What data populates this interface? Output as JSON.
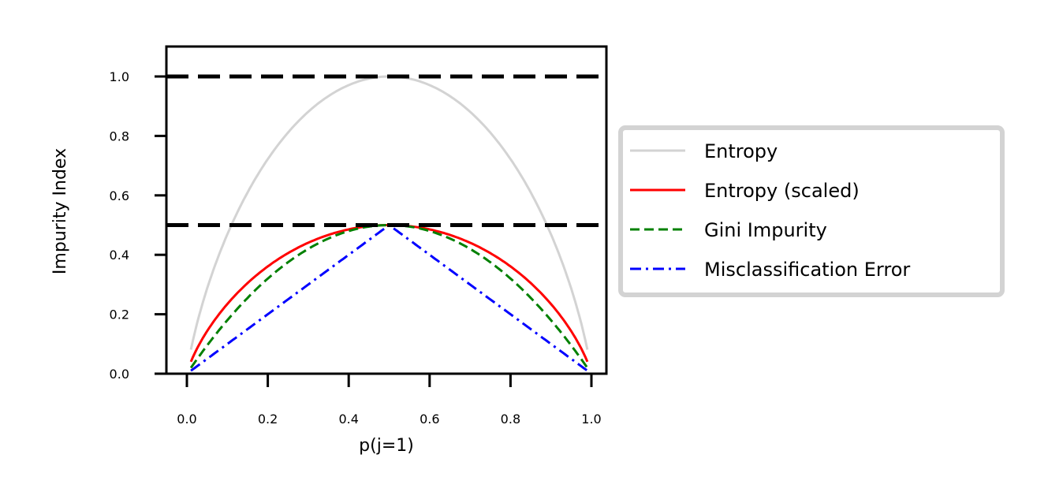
{
  "chart_data": {
    "type": "line",
    "title": "",
    "xlabel": "p(j=1)",
    "ylabel": "Impurity Index",
    "xlim": [
      -0.05,
      1.04
    ],
    "ylim": [
      0.0,
      1.1
    ],
    "xticks": [
      "0.0",
      "0.2",
      "0.4",
      "0.6",
      "0.8",
      "1.0"
    ],
    "yticks": [
      "0.0",
      "0.2",
      "0.4",
      "0.6",
      "0.8",
      "1.0"
    ],
    "grid": false,
    "legend_position": "outside right, center",
    "x": [
      0.01,
      0.1,
      0.2,
      0.3,
      0.4,
      0.5,
      0.6,
      0.7,
      0.8,
      0.9,
      0.99
    ],
    "series": [
      {
        "name": "Entropy",
        "color": "#d3d3d3",
        "style": "solid",
        "values": [
          0.081,
          0.469,
          0.722,
          0.881,
          0.971,
          1.0,
          0.971,
          0.881,
          0.722,
          0.469,
          0.081
        ]
      },
      {
        "name": "Entropy (scaled)",
        "color": "#ff0000",
        "style": "solid",
        "values": [
          0.04,
          0.234,
          0.361,
          0.441,
          0.485,
          0.5,
          0.485,
          0.441,
          0.361,
          0.234,
          0.04
        ]
      },
      {
        "name": "Gini Impurity",
        "color": "#008000",
        "style": "dashed",
        "values": [
          0.02,
          0.18,
          0.32,
          0.42,
          0.48,
          0.5,
          0.48,
          0.42,
          0.32,
          0.18,
          0.02
        ]
      },
      {
        "name": "Misclassification Error",
        "color": "#0000ff",
        "style": "dashdot",
        "values": [
          0.01,
          0.1,
          0.2,
          0.3,
          0.4,
          0.5,
          0.4,
          0.3,
          0.2,
          0.1,
          0.01
        ]
      }
    ],
    "hlines": [
      {
        "y": 1.0,
        "color": "#000000",
        "style": "dashed"
      },
      {
        "y": 0.5,
        "color": "#000000",
        "style": "dashed"
      }
    ]
  }
}
